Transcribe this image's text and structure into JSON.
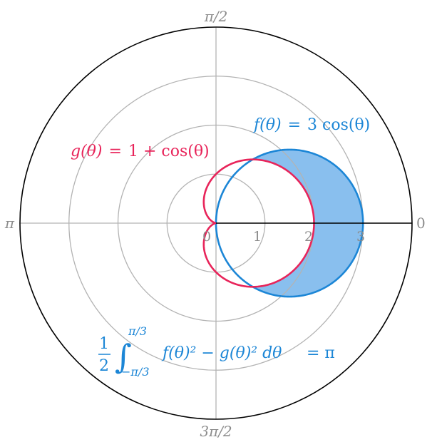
{
  "chart_data": {
    "type": "polar",
    "title": "",
    "r_max": 4,
    "r_ticks": [
      "0",
      "1",
      "2",
      "3"
    ],
    "r_tick_values": [
      0,
      1,
      2,
      3
    ],
    "grid_circle_values": [
      1,
      2,
      3
    ],
    "angle_labels": {
      "right": "0",
      "top": "π/2",
      "left": "π",
      "bottom": "3π/2"
    },
    "series": [
      {
        "name": "f",
        "formula": "f(θ) = 3cos(θ)",
        "label_parts": {
          "lhs": "f(θ)",
          "eq": "=",
          "coef": "3",
          "fn": "cos(θ)"
        },
        "color": "#1c86d6",
        "theta_range": [
          -1.5708,
          1.5708
        ]
      },
      {
        "name": "g",
        "formula": "g(θ) = 1 + cos(θ)",
        "label_parts": {
          "lhs": "g(θ)",
          "eq": "=",
          "one": "1",
          "plus": "+",
          "fn": "cos(θ)"
        },
        "color": "#e8245a",
        "theta_range": [
          0,
          6.2832
        ]
      }
    ],
    "shaded_region": {
      "between": [
        "f",
        "g"
      ],
      "theta_range": [
        -1.0472,
        1.0472
      ],
      "fill": "#89bfee"
    },
    "annotation": {
      "half": "1",
      "two": "2",
      "upper": "π/3",
      "lower": "−π/3",
      "integrand": "f(θ)² − g(θ)² dθ",
      "result": "= π",
      "color": "#1c86d6"
    }
  }
}
